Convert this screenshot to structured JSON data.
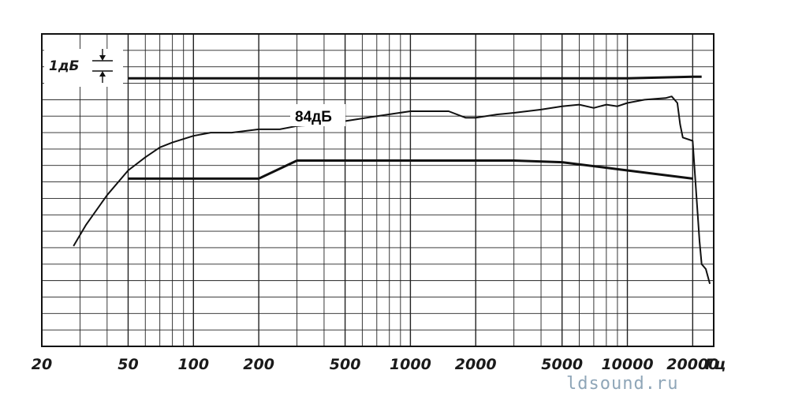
{
  "chart_data": {
    "type": "line",
    "x_scale": "log",
    "xlim": [
      20,
      25000
    ],
    "ylim": [
      -16,
      3
    ],
    "y_unit": "dB relative to 84 dB reference",
    "grid": true,
    "xlabel": "",
    "ylabel": "",
    "x_ticks": [
      {
        "value": 20,
        "label": "20"
      },
      {
        "value": 50,
        "label": "50"
      },
      {
        "value": 100,
        "label": "100"
      },
      {
        "value": 200,
        "label": "200"
      },
      {
        "value": 500,
        "label": "500"
      },
      {
        "value": 1000,
        "label": "1000"
      },
      {
        "value": 2000,
        "label": "2000"
      },
      {
        "value": 5000,
        "label": "5000"
      },
      {
        "value": 10000,
        "label": "10000"
      },
      {
        "value": 20000,
        "label": "20000"
      }
    ],
    "x_unit_label": "Гц",
    "scale_marker": {
      "label": "1дБ",
      "step_db": 1
    },
    "reference_label": "84дБ",
    "series": [
      {
        "role": "measured response",
        "x": [
          28,
          32,
          40,
          50,
          60,
          70,
          80,
          100,
          120,
          150,
          200,
          250,
          300,
          400,
          500,
          700,
          1000,
          1200,
          1500,
          1800,
          2000,
          2500,
          3000,
          4000,
          5000,
          6000,
          7000,
          8000,
          9000,
          10000,
          12000,
          15000,
          16000,
          17000,
          17500,
          18000,
          20000,
          21500,
          22000,
          23000,
          24000
        ],
        "y": [
          -9.9,
          -8.6,
          -6.8,
          -5.3,
          -4.5,
          -3.9,
          -3.6,
          -3.2,
          -3.0,
          -3.0,
          -2.8,
          -2.8,
          -2.6,
          -2.5,
          -2.3,
          -2.0,
          -1.7,
          -1.7,
          -1.7,
          -2.1,
          -2.1,
          -1.9,
          -1.8,
          -1.6,
          -1.4,
          -1.3,
          -1.5,
          -1.3,
          -1.4,
          -1.2,
          -1.0,
          -0.9,
          -0.8,
          -1.2,
          -2.5,
          -3.3,
          -3.5,
          -9.6,
          -11.0,
          -11.3,
          -12.2
        ]
      },
      {
        "role": "lower tolerance limit",
        "x": [
          50,
          200,
          300,
          1000,
          3000,
          5000,
          10000,
          20000
        ],
        "y": [
          -5.8,
          -5.8,
          -4.7,
          -4.7,
          -4.7,
          -4.8,
          -5.3,
          -5.8
        ]
      },
      {
        "role": "upper tolerance limit",
        "x": [
          50,
          1000,
          10000,
          20000,
          22000
        ],
        "y": [
          0.3,
          0.3,
          0.3,
          0.4,
          0.4
        ]
      }
    ]
  },
  "watermark": "ldsound.ru"
}
